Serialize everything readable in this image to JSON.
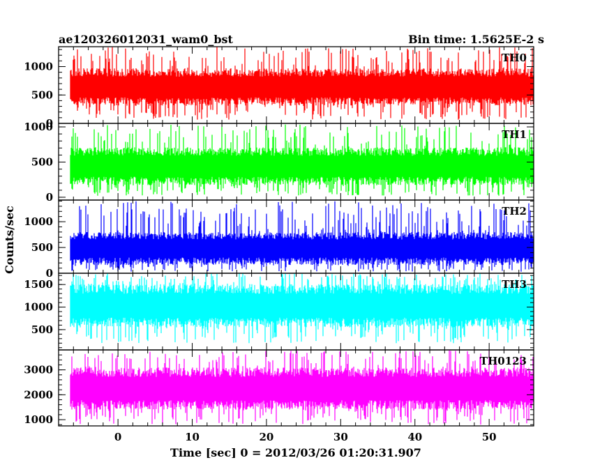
{
  "chart_data": {
    "type": "line",
    "title": "ae120326012031_wam0_bst",
    "subtitle": "Bin time: 1.5625E-2 s",
    "xlabel": "Time [sec] 0 = 2012/03/26 01:20:31.907",
    "ylabel": "Counts/sec",
    "xlim": [
      -8,
      56
    ],
    "x_data_range": [
      -8,
      56
    ],
    "bin_time": 0.015625,
    "xticks": [
      0,
      10,
      20,
      30,
      40,
      50
    ],
    "xtick_labels": [
      "0",
      "10",
      "20",
      "30",
      "40",
      "50"
    ],
    "grid": false,
    "panels": [
      {
        "name": "TH0",
        "color": "#ff0000",
        "ylim": [
          0,
          1350
        ],
        "yticks": [
          0,
          500,
          1000
        ],
        "ytick_labels": [
          "0",
          "500",
          "1000"
        ],
        "center": 640,
        "halfwidth": 330,
        "spike_max": 1350,
        "spike_min": 60
      },
      {
        "name": "TH1",
        "color": "#00ff00",
        "ylim": [
          -40,
          1050
        ],
        "yticks": [
          0,
          500,
          1000
        ],
        "ytick_labels": [
          "0",
          "500",
          "1000"
        ],
        "center": 440,
        "halfwidth": 270,
        "spike_max": 1040,
        "spike_min": 20
      },
      {
        "name": "TH2",
        "color": "#0000ff",
        "ylim": [
          0,
          1420
        ],
        "yticks": [
          0,
          500,
          1000
        ],
        "ytick_labels": [
          "0",
          "500",
          "1000"
        ],
        "center": 480,
        "halfwidth": 320,
        "spike_max": 1400,
        "spike_min": 30
      },
      {
        "name": "TH3",
        "color": "#00ffff",
        "ylim": [
          50,
          1750
        ],
        "yticks": [
          500,
          1000,
          1500
        ],
        "ytick_labels": [
          "500",
          "1000",
          "1500"
        ],
        "center": 1030,
        "halfwidth": 480,
        "spike_max": 1750,
        "spike_min": 200
      },
      {
        "name": "TH0123",
        "color": "#ff00ff",
        "ylim": [
          750,
          3800
        ],
        "yticks": [
          1000,
          2000,
          3000
        ],
        "ytick_labels": [
          "1000",
          "2000",
          "3000"
        ],
        "center": 2250,
        "halfwidth": 850,
        "spike_max": 3800,
        "spike_min": 800
      }
    ]
  }
}
